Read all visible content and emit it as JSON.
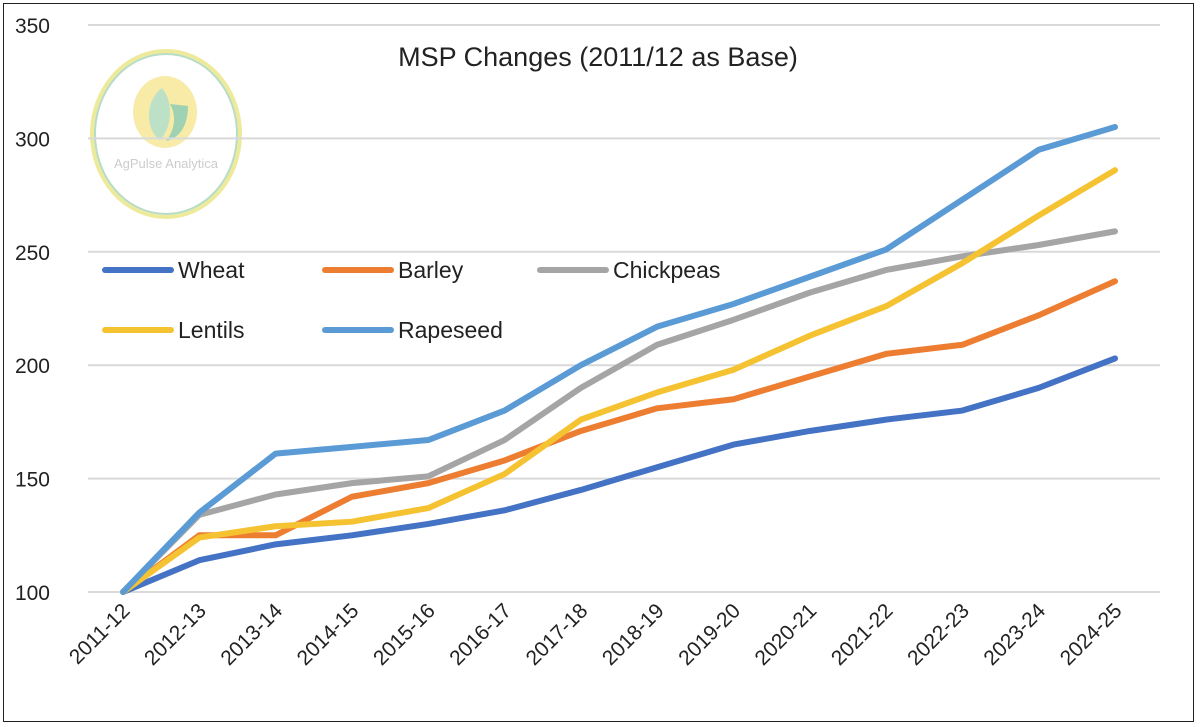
{
  "chart_data": {
    "type": "line",
    "title": "MSP Changes (2011/12 as Base)",
    "xlabel": "",
    "ylabel": "",
    "ylim": [
      100,
      350
    ],
    "yticks": [
      100,
      150,
      200,
      250,
      300,
      350
    ],
    "grid": true,
    "legend_placement": "upper-left (inside plot)",
    "categories": [
      "2011-12",
      "2012-13",
      "2013-14",
      "2014-15",
      "2015-16",
      "2016-17",
      "2017-18",
      "2018-19",
      "2019-20",
      "2020-21",
      "2021-22",
      "2022-23",
      "2023-24",
      "2024-25"
    ],
    "series": [
      {
        "name": "Wheat",
        "color": "#4472C4",
        "values": [
          100,
          114,
          121,
          125,
          130,
          136,
          145,
          155,
          165,
          171,
          176,
          180,
          190,
          203
        ]
      },
      {
        "name": "Barley",
        "color": "#ED7D31",
        "values": [
          100,
          125,
          125,
          142,
          148,
          158,
          171,
          181,
          185,
          195,
          205,
          209,
          222,
          237
        ]
      },
      {
        "name": "Chickpeas",
        "color": "#A5A5A5",
        "values": [
          100,
          134,
          143,
          148,
          151,
          167,
          190,
          209,
          220,
          232,
          242,
          248,
          253,
          259
        ]
      },
      {
        "name": "Lentils",
        "color": "#F5C232",
        "values": [
          100,
          124,
          129,
          131,
          137,
          152,
          176,
          188,
          198,
          213,
          226,
          245,
          266,
          286
        ]
      },
      {
        "name": "Rapeseed",
        "color": "#5B9BD5",
        "values": [
          100,
          135,
          161,
          164,
          167,
          180,
          200,
          217,
          227,
          239,
          251,
          273,
          295,
          305
        ]
      }
    ]
  },
  "logo": {
    "text": "AgPulse Analytica"
  }
}
